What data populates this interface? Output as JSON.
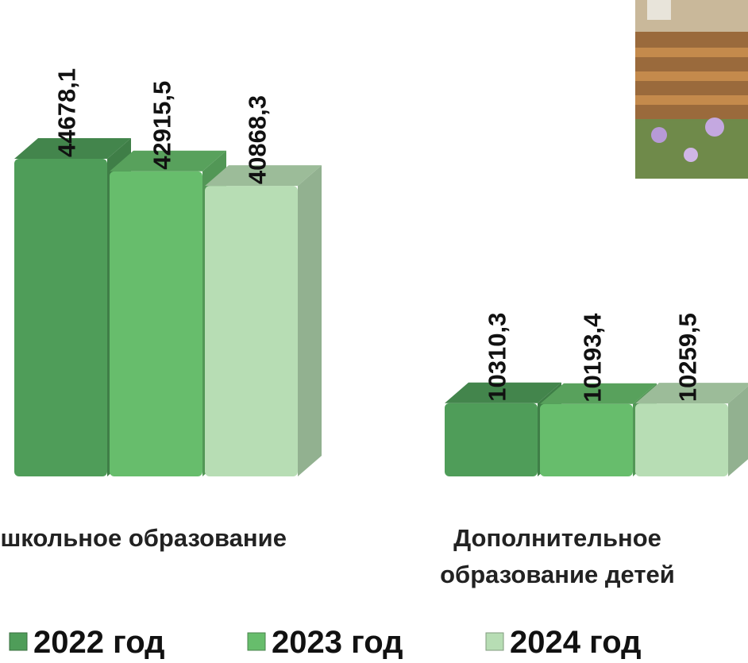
{
  "chart_data": {
    "type": "bar3d",
    "categories": [
      "Дошкольное образование",
      "Дополнительное образование детей"
    ],
    "series": [
      {
        "name": "2022 год",
        "color": "#4f9d59",
        "values": [
          44678.1,
          10310.3
        ],
        "value_labels": [
          "44678,1",
          "10310,3"
        ]
      },
      {
        "name": "2023 год",
        "color": "#67bd6c",
        "values": [
          42915.5,
          10193.4
        ],
        "value_labels": [
          "42915,5",
          "10193,4"
        ]
      },
      {
        "name": "2024 год",
        "color": "#b7ddb4",
        "values": [
          40868.3,
          10259.5
        ],
        "value_labels": [
          "40868,3",
          "10259,5"
        ]
      }
    ],
    "legend": "bottom"
  }
}
